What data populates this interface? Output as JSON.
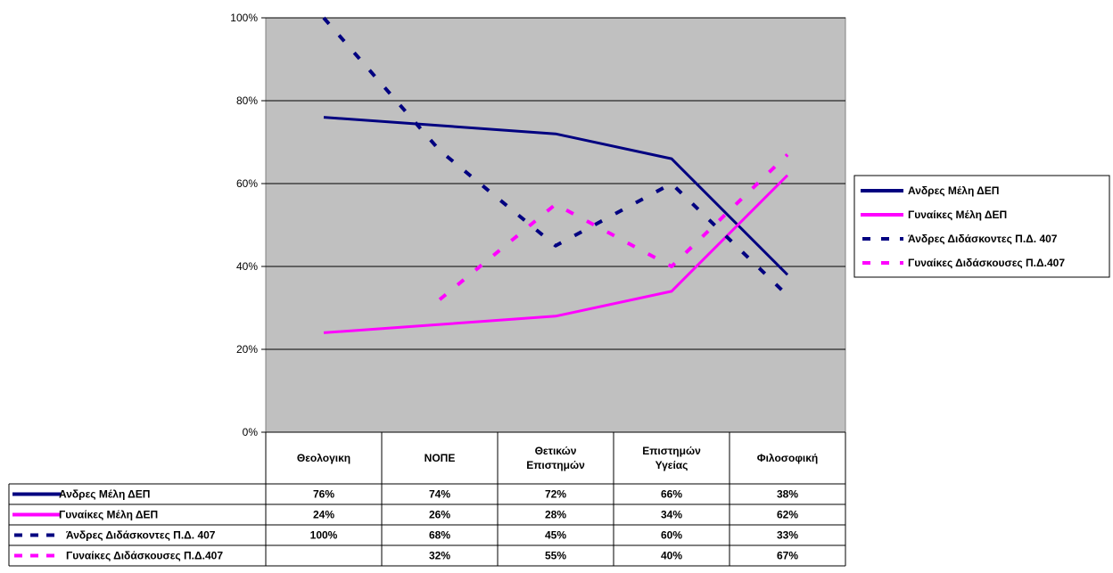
{
  "chart_data": {
    "type": "line",
    "title": "",
    "xlabel": "",
    "ylabel": "",
    "ylim": [
      0,
      100
    ],
    "y_ticks": [
      "0%",
      "20%",
      "40%",
      "60%",
      "80%",
      "100%"
    ],
    "grid": true,
    "legend_position": "right",
    "categories": [
      [
        "Θεολογικη"
      ],
      [
        "ΝΟΠΕ"
      ],
      [
        "Θετικών",
        "Επιστημών"
      ],
      [
        "Επιστημών",
        "Υγείας"
      ],
      [
        "Φιλοσοφική"
      ]
    ],
    "series": [
      {
        "name": "Ανδρες Μέλη ΔΕΠ",
        "values": [
          76,
          74,
          72,
          66,
          38
        ],
        "labels": [
          "76%",
          "74%",
          "72%",
          "66%",
          "38%"
        ],
        "color": "#000080",
        "style": "solid"
      },
      {
        "name": "Γυναίκες Μέλη ΔΕΠ",
        "values": [
          24,
          26,
          28,
          34,
          62
        ],
        "labels": [
          "24%",
          "26%",
          "28%",
          "34%",
          "62%"
        ],
        "color": "#FF00FF",
        "style": "solid"
      },
      {
        "name": "Άνδρες Διδάσκοντες Π.Δ. 407",
        "values": [
          100,
          68,
          45,
          60,
          33
        ],
        "labels": [
          "100%",
          "68%",
          "45%",
          "60%",
          "33%"
        ],
        "color": "#000080",
        "style": "dashed"
      },
      {
        "name": "Γυναίκες Διδάσκουσες Π.Δ.407",
        "values": [
          null,
          32,
          55,
          40,
          67
        ],
        "labels": [
          "",
          "32%",
          "55%",
          "40%",
          "67%"
        ],
        "color": "#FF00FF",
        "style": "dashed"
      }
    ],
    "plot_background": "#C0C0C0"
  }
}
